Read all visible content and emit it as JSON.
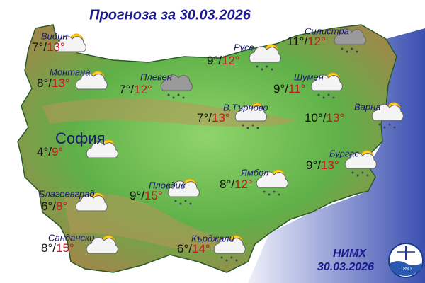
{
  "title": "Прогноза за 30.03.2026",
  "cities": [
    {
      "name": "Видин",
      "low": "7°/",
      "high": "13°"
    },
    {
      "name": "Монтана",
      "low": "8°/",
      "high": "13°"
    },
    {
      "name": "Плевен",
      "low": "7°/",
      "high": "12°"
    },
    {
      "name": "Русе",
      "low": "9°/",
      "high": "12°"
    },
    {
      "name": "Силистра",
      "low": "11°/",
      "high": "12°"
    },
    {
      "name": "Шумен",
      "low": "9°/",
      "high": "11°"
    },
    {
      "name": "Варна",
      "low": "10°/",
      "high": "13°"
    },
    {
      "name": "В.Търново",
      "low": "7°/",
      "high": "13°"
    },
    {
      "name": "София",
      "low": "4°/",
      "high": "9°"
    },
    {
      "name": "Бургас",
      "low": "9°/",
      "high": "13°"
    },
    {
      "name": "Ямбол",
      "low": "8°/",
      "high": "12°"
    },
    {
      "name": "Пловдив",
      "low": "9°/",
      "high": "15°"
    },
    {
      "name": "Благоевград",
      "low": "6°/",
      "high": "8°"
    },
    {
      "name": "Сандански",
      "low": "8°/",
      "high": "15°"
    },
    {
      "name": "Кърджали",
      "low": "6°/",
      "high": "14°"
    }
  ],
  "footer": {
    "agency": "НИМХ",
    "date": "30.03.2026",
    "logo_year": "1890"
  }
}
